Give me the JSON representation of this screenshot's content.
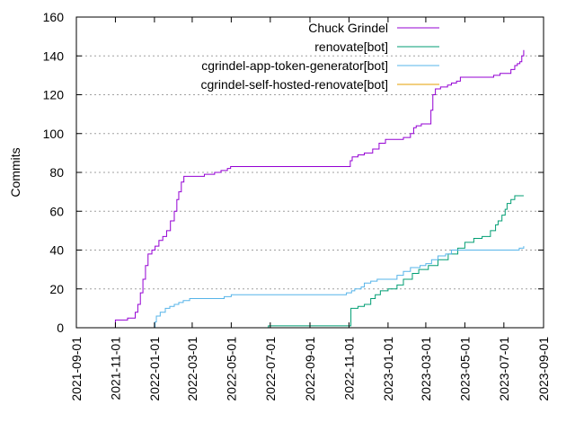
{
  "chart_data": {
    "type": "line",
    "ylabel": "Commits",
    "xlabel": "",
    "title": "",
    "ylim": [
      0,
      160
    ],
    "xlim": [
      "2021-09-01",
      "2023-09-01"
    ],
    "grid": true,
    "legend_position": "top-right",
    "x_ticks": [
      "2021-09-01",
      "2021-11-01",
      "2022-01-01",
      "2022-03-01",
      "2022-05-01",
      "2022-07-01",
      "2022-09-01",
      "2022-11-01",
      "2023-01-01",
      "2023-03-01",
      "2023-05-01",
      "2023-07-01",
      "2023-09-01"
    ],
    "y_ticks": [
      0,
      20,
      40,
      60,
      80,
      100,
      120,
      140,
      160
    ],
    "series": [
      {
        "name": "Chuck Grindel",
        "color": "#9400d3",
        "points": [
          [
            "2021-11-01",
            0
          ],
          [
            "2021-11-01",
            4
          ],
          [
            "2021-11-20",
            5
          ],
          [
            "2021-11-30",
            5
          ],
          [
            "2021-12-02",
            8
          ],
          [
            "2021-12-06",
            12
          ],
          [
            "2021-12-10",
            18
          ],
          [
            "2021-12-14",
            25
          ],
          [
            "2021-12-18",
            32
          ],
          [
            "2021-12-22",
            38
          ],
          [
            "2021-12-28",
            40
          ],
          [
            "2022-01-02",
            42
          ],
          [
            "2022-01-08",
            45
          ],
          [
            "2022-01-14",
            47
          ],
          [
            "2022-01-20",
            50
          ],
          [
            "2022-01-26",
            55
          ],
          [
            "2022-02-01",
            60
          ],
          [
            "2022-02-05",
            66
          ],
          [
            "2022-02-08",
            70
          ],
          [
            "2022-02-12",
            75
          ],
          [
            "2022-02-16",
            78
          ],
          [
            "2022-03-01",
            78
          ],
          [
            "2022-03-20",
            79
          ],
          [
            "2022-04-05",
            80
          ],
          [
            "2022-04-15",
            81
          ],
          [
            "2022-04-25",
            82
          ],
          [
            "2022-04-30",
            83
          ],
          [
            "2022-06-01",
            83
          ],
          [
            "2022-08-01",
            83
          ],
          [
            "2022-10-01",
            83
          ],
          [
            "2022-10-28",
            83
          ],
          [
            "2022-11-01",
            83
          ],
          [
            "2022-11-03",
            86
          ],
          [
            "2022-11-06",
            88
          ],
          [
            "2022-11-15",
            89
          ],
          [
            "2022-11-25",
            90
          ],
          [
            "2022-12-08",
            92
          ],
          [
            "2022-12-18",
            95
          ],
          [
            "2022-12-28",
            97
          ],
          [
            "2023-01-15",
            97
          ],
          [
            "2023-01-25",
            98
          ],
          [
            "2023-02-05",
            100
          ],
          [
            "2023-02-10",
            103
          ],
          [
            "2023-02-14",
            104
          ],
          [
            "2023-02-22",
            105
          ],
          [
            "2023-03-07",
            105
          ],
          [
            "2023-03-09",
            112
          ],
          [
            "2023-03-12",
            120
          ],
          [
            "2023-03-16",
            123
          ],
          [
            "2023-03-24",
            124
          ],
          [
            "2023-04-04",
            125
          ],
          [
            "2023-04-10",
            126
          ],
          [
            "2023-04-18",
            127
          ],
          [
            "2023-04-24",
            129
          ],
          [
            "2023-05-15",
            129
          ],
          [
            "2023-06-05",
            129
          ],
          [
            "2023-06-15",
            130
          ],
          [
            "2023-06-25",
            131
          ],
          [
            "2023-07-05",
            131
          ],
          [
            "2023-07-12",
            133
          ],
          [
            "2023-07-18",
            135
          ],
          [
            "2023-07-22",
            136
          ],
          [
            "2023-07-26",
            137
          ],
          [
            "2023-07-29",
            140
          ],
          [
            "2023-08-01",
            143
          ]
        ]
      },
      {
        "name": "renovate[bot]",
        "color": "#009e73",
        "points": [
          [
            "2022-06-25",
            0
          ],
          [
            "2022-06-28",
            1
          ],
          [
            "2022-08-15",
            1
          ],
          [
            "2022-10-28",
            1
          ],
          [
            "2022-11-03",
            1
          ],
          [
            "2022-11-04",
            10
          ],
          [
            "2022-11-15",
            11
          ],
          [
            "2022-11-25",
            12
          ],
          [
            "2022-12-05",
            15
          ],
          [
            "2022-12-12",
            17
          ],
          [
            "2022-12-20",
            19
          ],
          [
            "2023-01-01",
            20
          ],
          [
            "2023-01-15",
            22
          ],
          [
            "2023-01-25",
            25
          ],
          [
            "2023-02-08",
            28
          ],
          [
            "2023-02-18",
            30
          ],
          [
            "2023-03-05",
            32
          ],
          [
            "2023-03-20",
            35
          ],
          [
            "2023-04-05",
            38
          ],
          [
            "2023-04-20",
            41
          ],
          [
            "2023-05-01",
            44
          ],
          [
            "2023-05-15",
            46
          ],
          [
            "2023-05-28",
            47
          ],
          [
            "2023-06-10",
            50
          ],
          [
            "2023-06-18",
            53
          ],
          [
            "2023-06-22",
            55
          ],
          [
            "2023-06-28",
            58
          ],
          [
            "2023-07-03",
            61
          ],
          [
            "2023-07-06",
            64
          ],
          [
            "2023-07-12",
            66
          ],
          [
            "2023-07-18",
            68
          ],
          [
            "2023-08-01",
            68
          ]
        ]
      },
      {
        "name": "cgrindel-app-token-generator[bot]",
        "color": "#56b4e9",
        "points": [
          [
            "2022-01-01",
            0
          ],
          [
            "2022-01-02",
            3
          ],
          [
            "2022-01-04",
            6
          ],
          [
            "2022-01-10",
            8
          ],
          [
            "2022-01-18",
            10
          ],
          [
            "2022-01-25",
            11
          ],
          [
            "2022-02-01",
            12
          ],
          [
            "2022-02-08",
            13
          ],
          [
            "2022-02-15",
            14
          ],
          [
            "2022-02-25",
            15
          ],
          [
            "2022-04-01",
            15
          ],
          [
            "2022-04-20",
            16
          ],
          [
            "2022-05-01",
            17
          ],
          [
            "2022-06-15",
            17
          ],
          [
            "2022-08-01",
            17
          ],
          [
            "2022-10-01",
            17
          ],
          [
            "2022-10-20",
            17
          ],
          [
            "2022-10-28",
            18
          ],
          [
            "2022-11-05",
            19
          ],
          [
            "2022-11-10",
            20
          ],
          [
            "2022-11-20",
            21
          ],
          [
            "2022-11-25",
            23
          ],
          [
            "2022-12-05",
            24
          ],
          [
            "2022-12-15",
            25
          ],
          [
            "2023-01-05",
            25
          ],
          [
            "2023-01-15",
            27
          ],
          [
            "2023-01-25",
            29
          ],
          [
            "2023-02-05",
            31
          ],
          [
            "2023-02-20",
            32
          ],
          [
            "2023-03-01",
            33
          ],
          [
            "2023-03-10",
            35
          ],
          [
            "2023-03-20",
            37
          ],
          [
            "2023-04-01",
            38
          ],
          [
            "2023-04-10",
            40
          ],
          [
            "2023-04-25",
            40
          ],
          [
            "2023-06-01",
            40
          ],
          [
            "2023-07-01",
            40
          ],
          [
            "2023-07-25",
            41
          ],
          [
            "2023-08-01",
            42
          ]
        ]
      },
      {
        "name": "cgrindel-self-hosted-renovate[bot]",
        "color": "#e69f00",
        "points": [
          [
            "2023-07-25",
            0
          ],
          [
            "2023-08-01",
            0
          ]
        ]
      }
    ]
  }
}
